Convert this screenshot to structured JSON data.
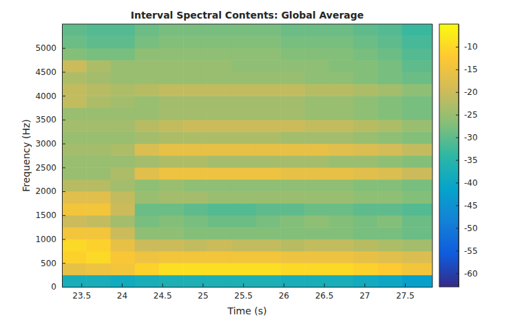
{
  "chart_data": {
    "type": "heatmap",
    "title": "Interval Spectral Contents: Global Average",
    "x_label": "Time (s)",
    "y_label": "Frequency (Hz)",
    "xlim": [
      23.26,
      27.84
    ],
    "ylim": [
      0,
      5500
    ],
    "xticks": [
      23.5,
      24,
      24.5,
      25,
      25.5,
      26,
      26.5,
      27,
      27.5
    ],
    "yticks": [
      0,
      500,
      1000,
      1500,
      2000,
      2500,
      3000,
      3500,
      4000,
      4500,
      5000
    ],
    "x_bins": [
      23.26,
      23.56,
      23.86,
      24.16,
      24.46,
      24.76,
      25.06,
      25.36,
      25.66,
      25.96,
      26.26,
      26.56,
      26.86,
      27.16,
      27.46,
      27.84
    ],
    "y_bins": [
      0,
      250,
      500,
      750,
      1000,
      1250,
      1500,
      1750,
      2000,
      2250,
      2500,
      2750,
      3000,
      3250,
      3500,
      3750,
      4000,
      4250,
      4500,
      4750,
      5000,
      5250,
      5500
    ],
    "cells": [
      [
        -38,
        -38,
        -39,
        -38,
        -37,
        -37,
        -37,
        -37,
        -37,
        -38,
        -38,
        -38,
        -39,
        -40,
        -42
      ],
      [
        -16,
        -15,
        -14,
        -11,
        -9,
        -9,
        -9,
        -9,
        -9,
        -10,
        -10,
        -10,
        -11,
        -12,
        -14
      ],
      [
        -11,
        -10,
        -13,
        -15,
        -14,
        -14,
        -14,
        -14,
        -14,
        -15,
        -15,
        -15,
        -16,
        -17,
        -18
      ],
      [
        -10,
        -11,
        -16,
        -20,
        -20,
        -21,
        -20,
        -21,
        -21,
        -22,
        -21,
        -21,
        -22,
        -23,
        -24
      ],
      [
        -14,
        -14,
        -20,
        -26,
        -26,
        -27,
        -27,
        -27,
        -27,
        -27,
        -27,
        -27,
        -28,
        -28,
        -29
      ],
      [
        -20,
        -21,
        -24,
        -28,
        -27,
        -28,
        -29,
        -29,
        -28,
        -27,
        -26,
        -27,
        -28,
        -27,
        -29
      ],
      [
        -14,
        -14,
        -20,
        -29,
        -29,
        -30,
        -31,
        -31,
        -30,
        -30,
        -29,
        -29,
        -30,
        -30,
        -31
      ],
      [
        -17,
        -17,
        -21,
        -25,
        -24,
        -24,
        -25,
        -25,
        -25,
        -25,
        -25,
        -25,
        -26,
        -26,
        -27
      ],
      [
        -22,
        -22,
        -24,
        -26,
        -25,
        -26,
        -26,
        -26,
        -26,
        -26,
        -26,
        -26,
        -27,
        -27,
        -28
      ],
      [
        -25,
        -25,
        -23,
        -17,
        -15,
        -15,
        -15,
        -15,
        -15,
        -16,
        -16,
        -16,
        -17,
        -18,
        -20
      ],
      [
        -25,
        -25,
        -25,
        -24,
        -23,
        -23,
        -24,
        -24,
        -24,
        -24,
        -24,
        -25,
        -25,
        -26,
        -27
      ],
      [
        -24,
        -24,
        -23,
        -18,
        -16,
        -16,
        -16,
        -16,
        -16,
        -16,
        -16,
        -17,
        -18,
        -19,
        -21
      ],
      [
        -25,
        -25,
        -25,
        -24,
        -23,
        -23,
        -23,
        -23,
        -23,
        -24,
        -24,
        -24,
        -25,
        -26,
        -27
      ],
      [
        -24,
        -24,
        -24,
        -22,
        -21,
        -20,
        -20,
        -20,
        -20,
        -20,
        -21,
        -21,
        -22,
        -23,
        -25
      ],
      [
        -25,
        -25,
        -25,
        -25,
        -24,
        -24,
        -24,
        -24,
        -24,
        -24,
        -25,
        -25,
        -26,
        -27,
        -28
      ],
      [
        -21,
        -23,
        -24,
        -25,
        -24,
        -24,
        -24,
        -24,
        -24,
        -24,
        -25,
        -25,
        -26,
        -27,
        -28
      ],
      [
        -21,
        -22,
        -23,
        -22,
        -21,
        -21,
        -21,
        -21,
        -21,
        -21,
        -22,
        -22,
        -23,
        -24,
        -26
      ],
      [
        -23,
        -24,
        -25,
        -25,
        -25,
        -25,
        -25,
        -25,
        -25,
        -25,
        -26,
        -26,
        -27,
        -28,
        -29
      ],
      [
        -20,
        -23,
        -25,
        -25,
        -25,
        -25,
        -25,
        -26,
        -26,
        -26,
        -26,
        -27,
        -27,
        -28,
        -30
      ],
      [
        -27,
        -28,
        -28,
        -26,
        -26,
        -26,
        -26,
        -26,
        -26,
        -27,
        -27,
        -27,
        -28,
        -29,
        -31
      ],
      [
        -29,
        -30,
        -30,
        -28,
        -27,
        -27,
        -27,
        -27,
        -27,
        -28,
        -28,
        -28,
        -29,
        -30,
        -32
      ],
      [
        -30,
        -31,
        -31,
        -29,
        -28,
        -28,
        -28,
        -28,
        -28,
        -29,
        -29,
        -29,
        -30,
        -31,
        -33
      ]
    ],
    "clim": [
      -63,
      -5
    ],
    "cticks": [
      -60,
      -55,
      -50,
      -45,
      -40,
      -35,
      -30,
      -25,
      -20,
      -15,
      -10
    ]
  }
}
